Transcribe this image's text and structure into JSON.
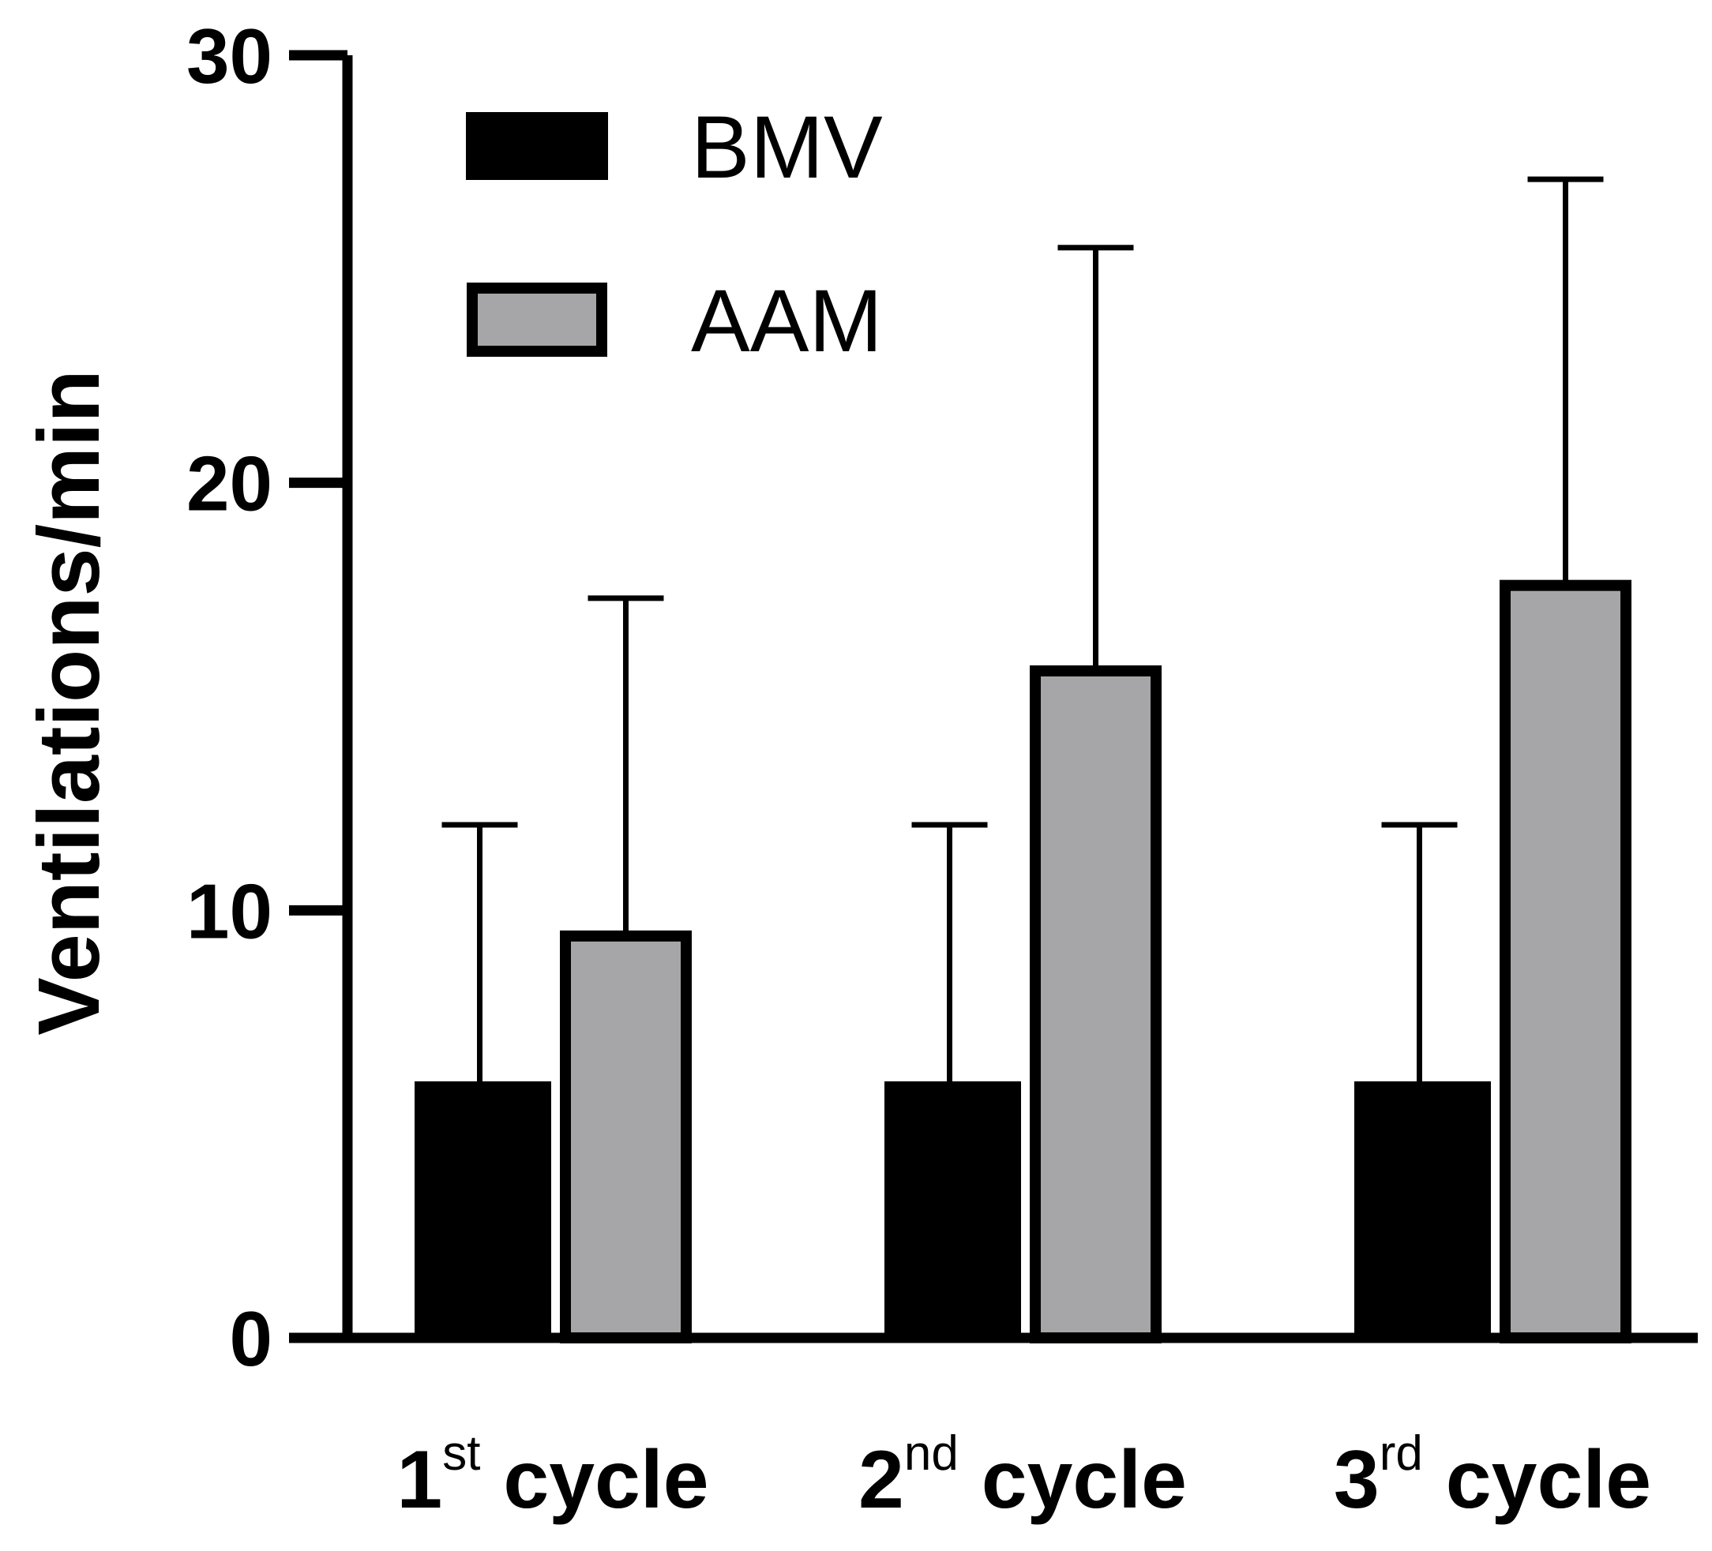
{
  "chart_data": {
    "type": "bar",
    "categories": [
      {
        "num": "1",
        "sup": "st",
        "word": " cycle"
      },
      {
        "num": "2",
        "sup": "nd",
        "word": " cycle"
      },
      {
        "num": "3",
        "sup": "rd",
        "word": " cycle"
      }
    ],
    "series": [
      {
        "name": "BMV",
        "color": "#000000",
        "outline": "#000000",
        "values": [
          6,
          6,
          6
        ],
        "error": [
          6,
          6,
          6
        ]
      },
      {
        "name": "AAM",
        "color": "#a6a6a8",
        "outline": "#000000",
        "values": [
          9.4,
          15.6,
          17.6
        ],
        "error": [
          7.9,
          9.9,
          9.5
        ]
      }
    ],
    "ylabel": "Ventilations/min",
    "xlabel": "",
    "ylim": [
      0,
      30
    ],
    "yticks": [
      "0",
      "10",
      "20",
      "30"
    ],
    "legend_position": "top-left"
  }
}
